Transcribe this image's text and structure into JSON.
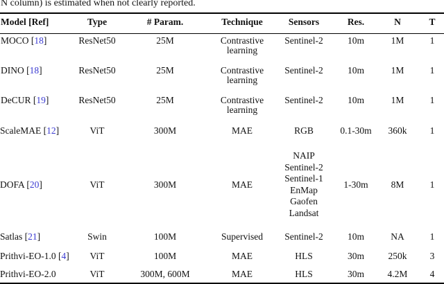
{
  "caption": "N column) is estimated when not clearly reported.",
  "colors": {
    "citation_link": "#3a3ad1",
    "text": "#111111",
    "rule": "#000000",
    "background": "#ffffff"
  },
  "table": {
    "columns": [
      "Model [Ref]",
      "Type",
      "# Param.",
      "Technique",
      "Sensors",
      "Res.",
      "N",
      "T"
    ],
    "rows": [
      {
        "model": "MOCO",
        "ref": "18",
        "type": "ResNet50",
        "params": "25M",
        "technique": "Contrastive learning",
        "sensors": [
          "Sentinel-2"
        ],
        "res": "10m",
        "n": "1M",
        "t": "1"
      },
      {
        "model": "DINO",
        "ref": "18",
        "type": "ResNet50",
        "params": "25M",
        "technique": "Contrastive learning",
        "sensors": [
          "Sentinel-2"
        ],
        "res": "10m",
        "n": "1M",
        "t": "1"
      },
      {
        "model": "DeCUR",
        "ref": "19",
        "type": "ResNet50",
        "params": "25M",
        "technique": "Contrastive learning",
        "sensors": [
          "Sentinel-2"
        ],
        "res": "10m",
        "n": "1M",
        "t": "1"
      },
      {
        "model": "ScaleMAE",
        "ref": "12",
        "type": "ViT",
        "params": "300M",
        "technique": "MAE",
        "sensors": [
          "RGB"
        ],
        "res": "0.1-30m",
        "n": "360k",
        "t": "1"
      },
      {
        "model": "DOFA",
        "ref": "20",
        "type": "ViT",
        "params": "300M",
        "technique": "MAE",
        "sensors": [
          "NAIP",
          "Sentinel-2",
          "Sentinel-1",
          "EnMap",
          "Gaofen",
          "Landsat"
        ],
        "res": "1-30m",
        "n": "8M",
        "t": "1"
      },
      {
        "model": "Satlas",
        "ref": "21",
        "type": "Swin",
        "params": "100M",
        "technique": "Supervised",
        "sensors": [
          "Sentinel-2"
        ],
        "res": "10m",
        "n": "NA",
        "t": "1"
      },
      {
        "model": "Prithvi-EO-1.0",
        "ref": "4",
        "type": "ViT",
        "params": "100M",
        "technique": "MAE",
        "sensors": [
          "HLS"
        ],
        "res": "30m",
        "n": "250k",
        "t": "3"
      },
      {
        "model": "Prithvi-EO-2.0",
        "ref": null,
        "type": "ViT",
        "params": "300M, 600M",
        "technique": "MAE",
        "sensors": [
          "HLS"
        ],
        "res": "30m",
        "n": "4.2M",
        "t": "4"
      }
    ]
  }
}
